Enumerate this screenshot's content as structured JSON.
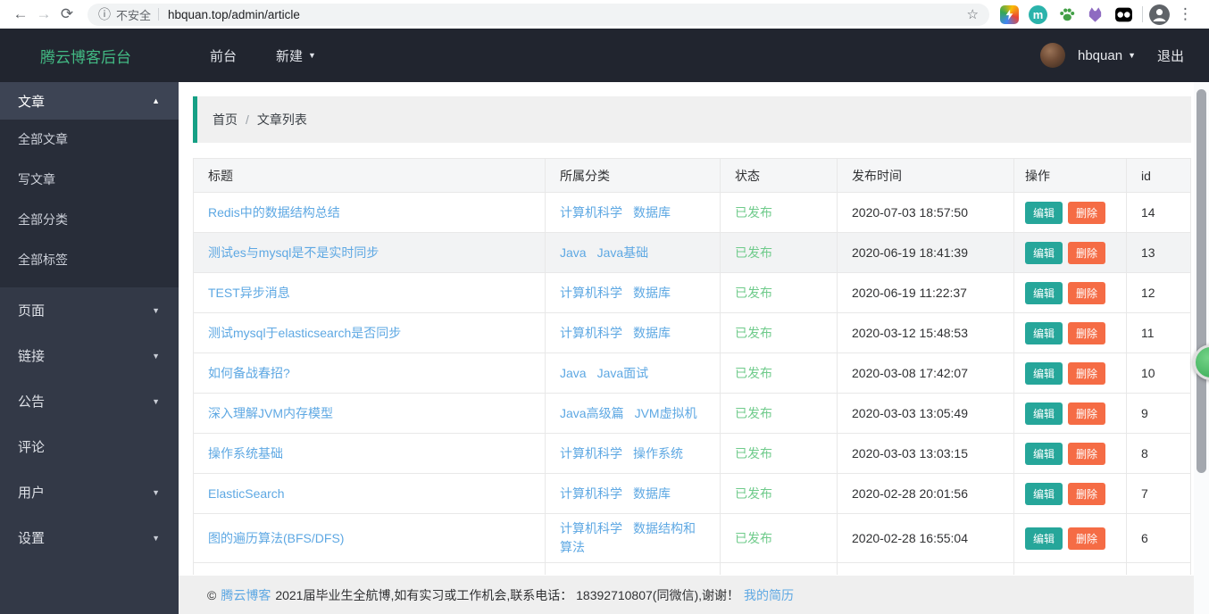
{
  "browser": {
    "security_label": "不安全",
    "url": "hbquan.top/admin/article"
  },
  "icons": {
    "back": "←",
    "forward": "→",
    "refresh": "⟳",
    "info": "ⓘ",
    "star": "☆",
    "menu_dots": "⋮",
    "caret_up": "▲",
    "caret_down": "▼",
    "extension_m_letter": "m"
  },
  "navbar": {
    "brand": "腾云博客后台",
    "menu": [
      {
        "label": "前台",
        "name": "frontend",
        "caret": false
      },
      {
        "label": "新建",
        "name": "new",
        "caret": true
      }
    ],
    "username": "hbquan",
    "logout_label": "退出"
  },
  "sidebar": {
    "items": [
      {
        "label": "文章",
        "name": "articles",
        "caret": "up",
        "active": true,
        "children": [
          {
            "label": "全部文章",
            "name": "all-articles"
          },
          {
            "label": "写文章",
            "name": "write-article"
          },
          {
            "label": "全部分类",
            "name": "all-categories"
          },
          {
            "label": "全部标签",
            "name": "all-tags"
          }
        ]
      },
      {
        "label": "页面",
        "name": "pages",
        "caret": "down"
      },
      {
        "label": "链接",
        "name": "links",
        "caret": "down"
      },
      {
        "label": "公告",
        "name": "announcements",
        "caret": "down"
      },
      {
        "label": "评论",
        "name": "comments",
        "caret": "none"
      },
      {
        "label": "用户",
        "name": "users",
        "caret": "down"
      },
      {
        "label": "设置",
        "name": "settings",
        "caret": "down"
      }
    ]
  },
  "breadcrumb": {
    "home": "首页",
    "separator": "/",
    "current": "文章列表"
  },
  "table": {
    "columns": {
      "title": "标题",
      "category": "所属分类",
      "status": "状态",
      "time": "发布时间",
      "actions": "操作",
      "id": "id"
    },
    "action_edit": "编辑",
    "action_delete": "删除",
    "rows": [
      {
        "title": "Redis中的数据结构总结",
        "categories": [
          "计算机科学",
          "数据库"
        ],
        "status": "已发布",
        "time": "2020-07-03 18:57:50",
        "id": "14"
      },
      {
        "title": "测试es与mysql是不是实时同步",
        "categories": [
          "Java",
          "Java基础"
        ],
        "status": "已发布",
        "time": "2020-06-19 18:41:39",
        "id": "13",
        "hover": true
      },
      {
        "title": "TEST异步消息",
        "categories": [
          "计算机科学",
          "数据库"
        ],
        "status": "已发布",
        "time": "2020-06-19 11:22:37",
        "id": "12"
      },
      {
        "title": "测试mysql于elasticsearch是否同步",
        "categories": [
          "计算机科学",
          "数据库"
        ],
        "status": "已发布",
        "time": "2020-03-12 15:48:53",
        "id": "11"
      },
      {
        "title": "如何备战春招?",
        "categories": [
          "Java",
          "Java面试"
        ],
        "status": "已发布",
        "time": "2020-03-08 17:42:07",
        "id": "10"
      },
      {
        "title": "深入理解JVM内存模型",
        "categories": [
          "Java高级篇",
          "JVM虚拟机"
        ],
        "status": "已发布",
        "time": "2020-03-03 13:05:49",
        "id": "9"
      },
      {
        "title": "操作系统基础",
        "categories": [
          "计算机科学",
          "操作系统"
        ],
        "status": "已发布",
        "time": "2020-03-03 13:03:15",
        "id": "8"
      },
      {
        "title": "ElasticSearch",
        "categories": [
          "计算机科学",
          "数据库"
        ],
        "status": "已发布",
        "time": "2020-02-28 20:01:56",
        "id": "7"
      },
      {
        "title": "图的遍历算法(BFS/DFS)",
        "categories": [
          "计算机科学",
          "数据结构和算法"
        ],
        "status": "已发布",
        "time": "2020-02-28 16:55:04",
        "id": "6",
        "tall": true
      }
    ]
  },
  "footer": {
    "copyright_symbol": "©",
    "brand_link": "腾云博客",
    "text": "2021届毕业生全航博,如有实习或工作机会,联系电话： 18392710807(同微信),谢谢！",
    "resume_link": "我的简历"
  },
  "colors": {
    "accent-green": "#42b983",
    "breadcrumb-accent": "#16a085",
    "link-blue": "#5ea8e3",
    "status-green": "#6fcb8b",
    "edit-btn": "#26a69a",
    "delete-btn": "#f56c45"
  }
}
